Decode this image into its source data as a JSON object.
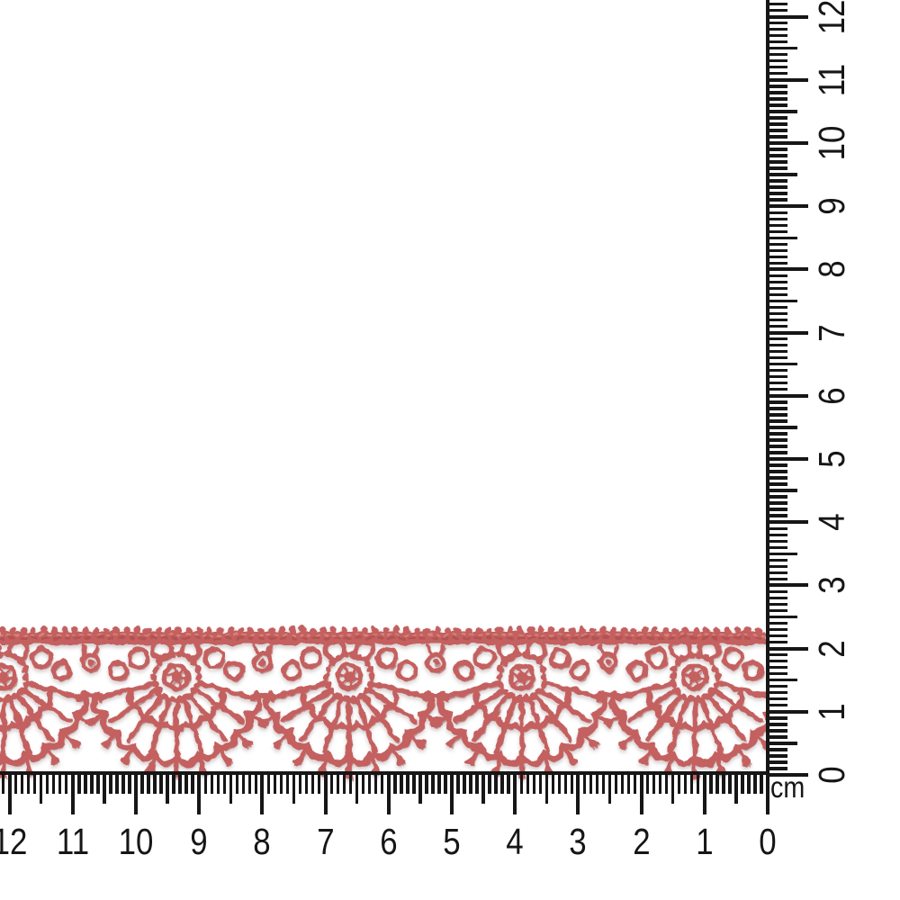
{
  "photo": {
    "description": "Dusty-rose guipure lace scallop trim laid horizontally across the lower part of a white background, its length and height measured by centimetre rulers along the bottom and right edges",
    "lace_colors": {
      "main": "#c4605e",
      "dark": "#9d4343",
      "light": "#e0958c"
    },
    "background": "#ffffff",
    "scallops_visible": 5
  },
  "rulers": {
    "unit_label": "cm",
    "color": "#161616",
    "bottom_labels": [
      "0",
      "1",
      "2",
      "3",
      "4",
      "5",
      "6",
      "7",
      "8",
      "9",
      "10",
      "11",
      "12"
    ],
    "right_labels": [
      "0",
      "1",
      "2",
      "3",
      "4",
      "5",
      "6",
      "7",
      "8",
      "9",
      "10",
      "11",
      "12"
    ]
  }
}
